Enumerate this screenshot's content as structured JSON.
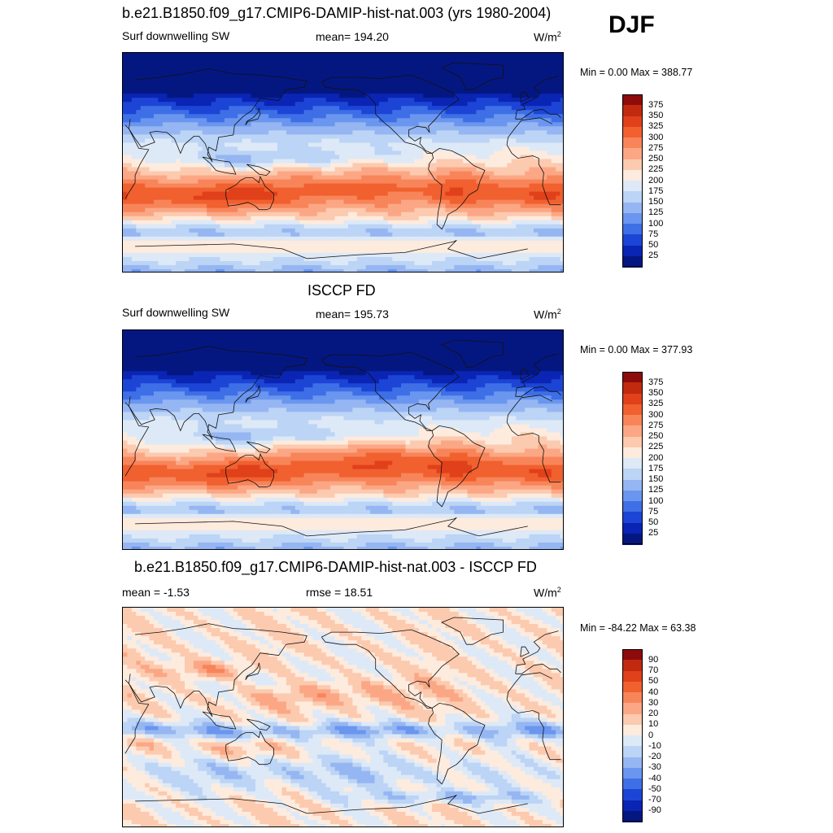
{
  "season": "DJF",
  "panels": [
    {
      "title": "b.e21.B1850.f09_g17.CMIP6-DAMIP-hist-nat.003 (yrs 1980-2004)",
      "left": "Surf downwelling SW",
      "center": "mean= 194.20",
      "units": "W/m",
      "units_sup": "2",
      "minmax": "Min =   0.00 Max = 388.77",
      "kind": "abs"
    },
    {
      "title": "ISCCP FD",
      "left": "Surf downwelling SW",
      "center": "mean= 195.73",
      "units": "W/m",
      "units_sup": "2",
      "minmax": "Min =   0.00 Max = 377.93",
      "kind": "abs2"
    },
    {
      "title": "b.e21.B1850.f09_g17.CMIP6-DAMIP-hist-nat.003 - ISCCP FD",
      "left": "mean =  -1.53",
      "center": "rmse =  18.51",
      "units": "W/m",
      "units_sup": "2",
      "minmax": "Min = -84.22 Max =  63.38",
      "kind": "diff"
    }
  ],
  "colorbars": {
    "abs": {
      "labels": [
        "375",
        "350",
        "325",
        "300",
        "275",
        "250",
        "225",
        "200",
        "175",
        "150",
        "125",
        "100",
        "75",
        "50",
        "25"
      ],
      "colors": [
        "#8e0b0b",
        "#c12a0f",
        "#e0401a",
        "#f1602f",
        "#f8855a",
        "#fba785",
        "#fccaaf",
        "#fdebde",
        "#dde9f7",
        "#bcd4f5",
        "#95b6f2",
        "#6a96ef",
        "#3e6fe6",
        "#1c45d6",
        "#0a24b4",
        "#041781"
      ]
    },
    "diff": {
      "labels": [
        "90",
        "70",
        "50",
        "40",
        "30",
        "20",
        "10",
        "0",
        "-10",
        "-20",
        "-30",
        "-40",
        "-50",
        "-70",
        "-90"
      ],
      "colors": [
        "#8e0b0b",
        "#c12a0f",
        "#e0401a",
        "#f1602f",
        "#f8855a",
        "#fba785",
        "#fccaaf",
        "#fdebde",
        "#dde9f7",
        "#bcd4f5",
        "#95b6f2",
        "#6a96ef",
        "#3e6fe6",
        "#1c45d6",
        "#0a24b4",
        "#041781"
      ]
    }
  }
}
